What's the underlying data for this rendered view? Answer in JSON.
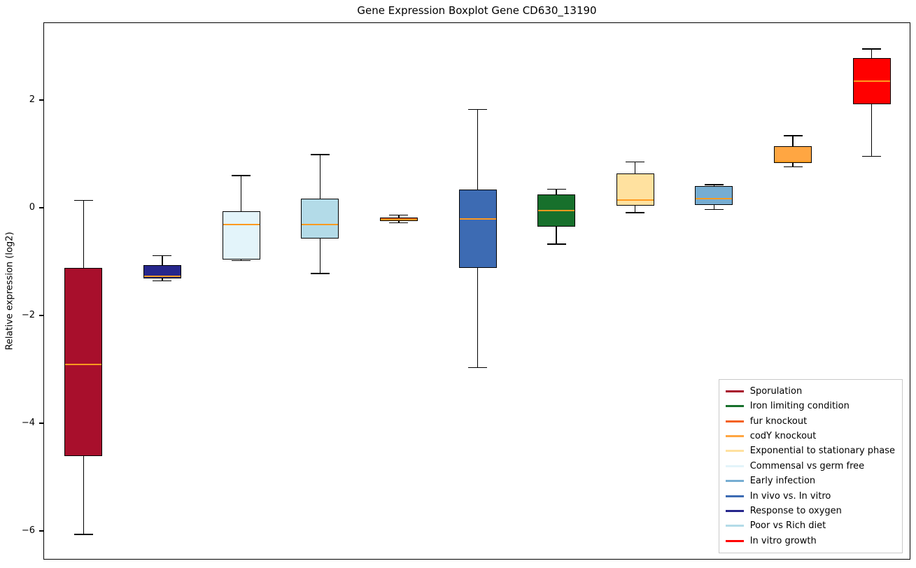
{
  "chart_data": {
    "type": "boxplot",
    "title": "Gene Expression Boxplot Gene CD630_13190",
    "xlabel": "",
    "ylabel": "Relative expression (log2)",
    "ylim": [
      -6.53,
      3.44
    ],
    "grid": false,
    "frame": true,
    "median_color": "#ff9a1f",
    "yticks": [
      {
        "value": 2,
        "label": "2"
      },
      {
        "value": 0,
        "label": "0"
      },
      {
        "value": -2,
        "label": "−2"
      },
      {
        "value": -4,
        "label": "−4"
      },
      {
        "value": -6,
        "label": "−6"
      }
    ],
    "boxes": [
      {
        "label": "Sporulation",
        "color": "#a80f2c",
        "whislo": -6.05,
        "q1": -4.6,
        "med": -2.9,
        "q3": -1.1,
        "whishi": 0.15
      },
      {
        "label": "Response to oxygen",
        "color": "#26268c",
        "whislo": -1.34,
        "q1": -1.3,
        "med": -1.26,
        "q3": -1.05,
        "whishi": -0.88
      },
      {
        "label": "Commensal vs germ free",
        "color": "#e3f4fa",
        "whislo": -0.97,
        "q1": -0.95,
        "med": -0.3,
        "q3": -0.05,
        "whishi": 0.61
      },
      {
        "label": "Poor vs Rich diet",
        "color": "#b3dbe8",
        "whislo": -1.21,
        "q1": -0.56,
        "med": -0.3,
        "q3": 0.18,
        "whishi": 1.0
      },
      {
        "label": "fur knockout",
        "color": "#f4611e",
        "whislo": -0.27,
        "q1": -0.24,
        "med": -0.21,
        "q3": -0.17,
        "whishi": -0.12
      },
      {
        "label": "In vivo vs. In vitro",
        "color": "#3d6bb3",
        "whislo": -2.95,
        "q1": -1.1,
        "med": -0.19,
        "q3": 0.35,
        "whishi": 1.84
      },
      {
        "label": "Iron limiting condition",
        "color": "#17702c",
        "whislo": -0.66,
        "q1": -0.34,
        "med": -0.04,
        "q3": 0.26,
        "whishi": 0.36
      },
      {
        "label": "Exponential to stationary phase",
        "color": "#ffe19f",
        "whislo": -0.08,
        "q1": 0.05,
        "med": 0.16,
        "q3": 0.65,
        "whishi": 0.86
      },
      {
        "label": "Early infection",
        "color": "#76add2",
        "whislo": -0.02,
        "q1": 0.06,
        "med": 0.18,
        "q3": 0.42,
        "whishi": 0.44
      },
      {
        "label": "codY knockout",
        "color": "#ffa642",
        "whislo": 0.77,
        "q1": 0.84,
        "med": 0.87,
        "q3": 1.16,
        "whishi": 1.35
      },
      {
        "label": "In vitro growth",
        "color": "#ff0000",
        "whislo": 0.97,
        "q1": 1.93,
        "med": 2.36,
        "q3": 2.79,
        "whishi": 2.96
      }
    ],
    "legend": {
      "position": "lower right",
      "entries": [
        {
          "label": "Sporulation",
          "color": "#a80f2c"
        },
        {
          "label": "Iron limiting condition",
          "color": "#17702c"
        },
        {
          "label": "fur knockout",
          "color": "#f4611e"
        },
        {
          "label": "codY knockout",
          "color": "#ffa642"
        },
        {
          "label": "Exponential to stationary phase",
          "color": "#ffe19f"
        },
        {
          "label": "Commensal vs germ free",
          "color": "#e3f4fa"
        },
        {
          "label": "Early infection",
          "color": "#76add2"
        },
        {
          "label": "In vivo vs. In vitro",
          "color": "#3d6bb3"
        },
        {
          "label": "Response to oxygen",
          "color": "#26268c"
        },
        {
          "label": "Poor vs Rich diet",
          "color": "#b3dbe8"
        },
        {
          "label": "In vitro growth",
          "color": "#ff0000"
        }
      ]
    }
  }
}
